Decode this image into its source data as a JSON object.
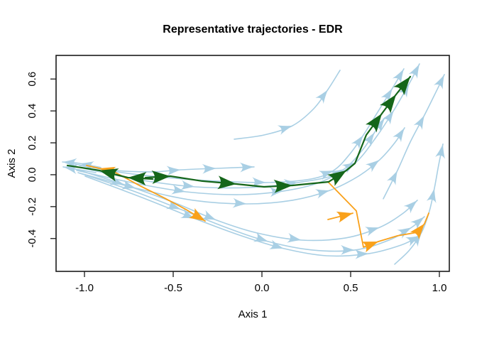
{
  "colors": {
    "background_trajectory": "#A9CFE4",
    "representative_green": "#15661A",
    "representative_orange": "#F9A11B",
    "axis": "#1A1A1A",
    "background": "#FFFFFF"
  },
  "chart_data": {
    "type": "line",
    "title": "Representative trajectories - EDR",
    "xlabel": "Axis 1",
    "ylabel": "Axis 2",
    "xlim": [
      -1.16,
      1.056
    ],
    "ylim": [
      -0.606,
      0.748
    ],
    "grid": false,
    "legend": "none",
    "x_ticks": {
      "values": [
        -1.0,
        -0.5,
        0.0,
        0.5,
        1.0
      ],
      "labels": [
        "-1.0",
        "-0.5",
        "0.0",
        "0.5",
        "1.0"
      ]
    },
    "y_ticks": {
      "values": [
        0.6,
        0.4,
        0.2,
        0.0,
        -0.2,
        -0.4
      ],
      "labels": [
        "0.6",
        "0.4",
        "0.2",
        "0.0",
        "-0.2",
        "-0.4"
      ]
    },
    "series": [
      {
        "name": "bg-far-left-upper",
        "role": "background",
        "points": [
          [
            -0.908,
            0.045
          ],
          [
            -1.028,
            0.071
          ],
          [
            -1.124,
            0.08
          ]
        ],
        "arrows": [
          1,
          2
        ]
      },
      {
        "name": "bg-far-left-lower",
        "role": "background",
        "points": [
          [
            -0.936,
            0.013
          ],
          [
            -1.052,
            0.036
          ],
          [
            -1.12,
            0.049
          ]
        ],
        "arrows": [
          2
        ]
      },
      {
        "name": "bg-top-short",
        "role": "background",
        "points": [
          [
            -1.028,
            0.058
          ],
          [
            -0.828,
            0.027
          ],
          [
            -0.616,
            0.018
          ],
          [
            -0.456,
            0.031
          ],
          [
            -0.256,
            0.04
          ],
          [
            -0.044,
            0.049
          ]
        ],
        "arrows": [
          3,
          4,
          5
        ]
      },
      {
        "name": "bg-upper-right-riser",
        "role": "background",
        "points": [
          [
            -0.156,
            0.223
          ],
          [
            0.012,
            0.249
          ],
          [
            0.172,
            0.307
          ],
          [
            0.292,
            0.414
          ],
          [
            0.372,
            0.534
          ],
          [
            0.44,
            0.655
          ]
        ],
        "arrows": [
          2,
          4
        ]
      },
      {
        "name": "bg-hug-green-top",
        "role": "background",
        "points": [
          [
            -1.056,
            0.067
          ],
          [
            -0.816,
            0.018
          ],
          [
            -0.536,
            -0.018
          ],
          [
            -0.256,
            -0.04
          ],
          [
            0.024,
            -0.049
          ],
          [
            0.276,
            -0.027
          ],
          [
            0.404,
            0.027
          ],
          [
            0.492,
            0.125
          ],
          [
            0.572,
            0.249
          ],
          [
            0.652,
            0.392
          ],
          [
            0.736,
            0.543
          ],
          [
            0.8,
            0.664
          ]
        ],
        "arrows": [
          2,
          4,
          6,
          8,
          10,
          11
        ]
      },
      {
        "name": "bg-past-green-tip",
        "role": "background",
        "points": [
          [
            -1.004,
            0.04
          ],
          [
            -0.696,
            -0.031
          ],
          [
            -0.376,
            -0.076
          ],
          [
            -0.068,
            -0.08
          ],
          [
            0.204,
            -0.049
          ],
          [
            0.404,
            -0.004
          ],
          [
            0.532,
            0.08
          ],
          [
            0.644,
            0.236
          ],
          [
            0.744,
            0.405
          ],
          [
            0.832,
            0.575
          ],
          [
            0.888,
            0.695
          ]
        ],
        "arrows": [
          2,
          4,
          6,
          8,
          9,
          10
        ]
      },
      {
        "name": "bg-mid-fan-1",
        "role": "background",
        "points": [
          [
            -1.044,
            0.027
          ],
          [
            -0.736,
            -0.049
          ],
          [
            -0.428,
            -0.107
          ],
          [
            -0.124,
            -0.125
          ],
          [
            0.124,
            -0.102
          ],
          [
            0.324,
            -0.049
          ],
          [
            0.464,
            0.036
          ],
          [
            0.564,
            0.151
          ],
          [
            0.636,
            0.267
          ],
          [
            0.692,
            0.356
          ]
        ],
        "arrows": [
          2,
          4,
          6,
          8,
          9
        ]
      },
      {
        "name": "bg-mid-fan-2",
        "role": "background",
        "points": [
          [
            -1.024,
            0.009
          ],
          [
            -0.708,
            -0.085
          ],
          [
            -0.388,
            -0.16
          ],
          [
            -0.084,
            -0.183
          ],
          [
            0.172,
            -0.16
          ],
          [
            0.384,
            -0.098
          ],
          [
            0.544,
            -0.009
          ],
          [
            0.664,
            0.094
          ],
          [
            0.752,
            0.205
          ],
          [
            0.804,
            0.294
          ]
        ],
        "arrows": [
          1,
          3,
          5,
          7,
          9
        ]
      },
      {
        "name": "bg-lower-fan-1",
        "role": "background",
        "points": [
          [
            -1.064,
            0.04
          ],
          [
            -0.776,
            -0.062
          ],
          [
            -0.496,
            -0.174
          ],
          [
            -0.256,
            -0.285
          ],
          [
            -0.028,
            -0.365
          ],
          [
            0.224,
            -0.41
          ],
          [
            0.472,
            -0.396
          ],
          [
            0.664,
            -0.33
          ],
          [
            0.796,
            -0.241
          ],
          [
            0.876,
            -0.16
          ]
        ],
        "arrows": [
          1,
          3,
          5,
          7,
          9
        ]
      },
      {
        "name": "bg-lower-fan-2",
        "role": "background",
        "points": [
          [
            -1.036,
            0.013
          ],
          [
            -0.736,
            -0.098
          ],
          [
            -0.456,
            -0.218
          ],
          [
            -0.204,
            -0.33
          ],
          [
            0.036,
            -0.419
          ],
          [
            0.284,
            -0.472
          ],
          [
            0.524,
            -0.472
          ],
          [
            0.716,
            -0.41
          ],
          [
            0.844,
            -0.33
          ],
          [
            0.916,
            -0.263
          ]
        ],
        "arrows": [
          2,
          4,
          6,
          8,
          9
        ]
      },
      {
        "name": "bg-bottom",
        "role": "background",
        "points": [
          [
            -0.996,
            -0.009
          ],
          [
            -0.676,
            -0.143
          ],
          [
            -0.376,
            -0.276
          ],
          [
            -0.116,
            -0.383
          ],
          [
            0.124,
            -0.463
          ],
          [
            0.364,
            -0.508
          ],
          [
            0.604,
            -0.494
          ],
          [
            0.784,
            -0.441
          ],
          [
            0.892,
            -0.383
          ]
        ],
        "arrows": [
          2,
          4,
          6,
          8
        ]
      },
      {
        "name": "bg-right-riser",
        "role": "background",
        "points": [
          [
            0.748,
            -0.561
          ],
          [
            0.832,
            -0.472
          ],
          [
            0.9,
            -0.361
          ],
          [
            0.944,
            -0.227
          ],
          [
            0.972,
            -0.085
          ],
          [
            0.996,
            0.062
          ],
          [
            1.02,
            0.192
          ]
        ],
        "arrows": [
          2,
          4,
          6
        ]
      },
      {
        "name": "bg-far-right-riser",
        "role": "background",
        "points": [
          [
            0.684,
            -0.151
          ],
          [
            0.764,
            0.027
          ],
          [
            0.836,
            0.205
          ],
          [
            0.916,
            0.374
          ],
          [
            0.984,
            0.526
          ],
          [
            1.028,
            0.628
          ]
        ],
        "arrows": [
          1,
          3,
          5
        ]
      },
      {
        "name": "orange-branch-left",
        "role": "representative_orange",
        "points": [
          [
            -0.824,
            0.013
          ],
          [
            -0.916,
            0.04
          ],
          [
            -0.988,
            0.058
          ]
        ],
        "arrows": [
          1
        ]
      },
      {
        "name": "orange-lower-left",
        "role": "representative_orange",
        "points": [
          [
            -0.824,
            0.013
          ],
          [
            -0.684,
            -0.071
          ],
          [
            -0.548,
            -0.147
          ],
          [
            -0.428,
            -0.218
          ],
          [
            -0.32,
            -0.29
          ]
        ],
        "arrows": [
          4
        ]
      },
      {
        "name": "orange-branch-right",
        "role": "representative_orange",
        "points": [
          [
            0.376,
            -0.049
          ],
          [
            0.532,
            -0.227
          ],
          [
            0.572,
            -0.454
          ],
          [
            0.656,
            -0.419
          ],
          [
            0.764,
            -0.383
          ],
          [
            0.876,
            -0.361
          ],
          [
            0.916,
            -0.307
          ],
          [
            0.94,
            -0.241
          ]
        ],
        "arrows": [
          3,
          6
        ]
      },
      {
        "name": "orange-short-right",
        "role": "representative_orange",
        "points": [
          [
            0.372,
            -0.281
          ],
          [
            0.512,
            -0.241
          ]
        ],
        "arrows": [
          1
        ]
      },
      {
        "name": "green-branch-left",
        "role": "representative_green",
        "points": [
          [
            -0.616,
            -0.027
          ],
          [
            -0.756,
            -0.018
          ],
          [
            -0.916,
            0.027
          ],
          [
            -1.096,
            0.058
          ]
        ],
        "arrows": [
          1,
          2
        ]
      },
      {
        "name": "green-main",
        "role": "representative_green",
        "points": [
          [
            -0.656,
            -0.018
          ],
          [
            -0.516,
            -0.009
          ],
          [
            -0.336,
            -0.04
          ],
          [
            -0.144,
            -0.058
          ],
          [
            0.012,
            -0.076
          ],
          [
            0.172,
            -0.067
          ],
          [
            0.376,
            -0.045
          ],
          [
            0.476,
            0.027
          ],
          [
            0.524,
            0.071
          ],
          [
            0.588,
            0.249
          ],
          [
            0.676,
            0.383
          ],
          [
            0.756,
            0.503
          ],
          [
            0.836,
            0.615
          ]
        ],
        "arrows": [
          1,
          3,
          5,
          7,
          10,
          11,
          12
        ]
      }
    ]
  }
}
